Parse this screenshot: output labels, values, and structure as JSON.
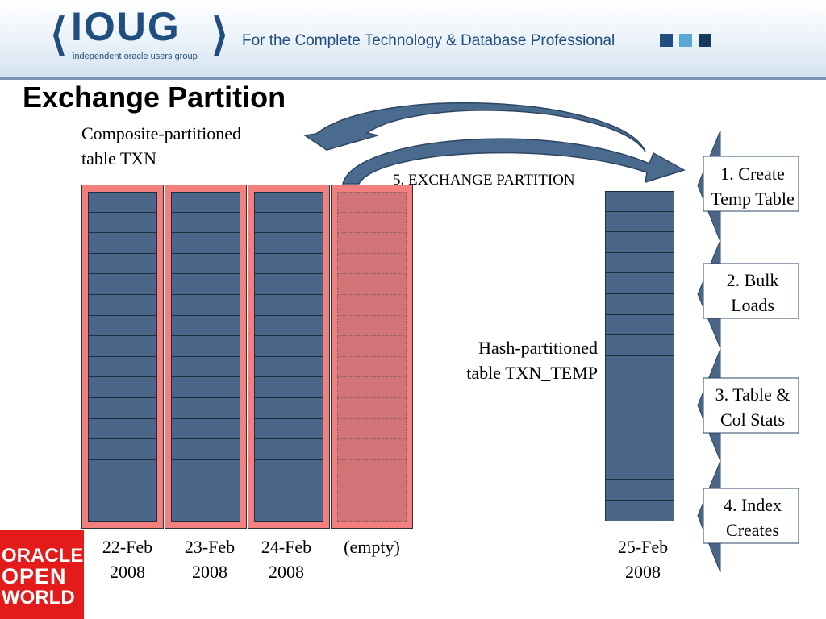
{
  "header": {
    "logo_text": "IOUG",
    "logo_sub": "independent oracle users group",
    "tagline": "For the Complete Technology & Database Professional"
  },
  "slide": {
    "title": "Exchange Partition",
    "composite_label_1": "Composite-partitioned",
    "composite_label_2": "table TXN",
    "exchange_label": "5. EXCHANGE PARTITION",
    "hash_label_1": "Hash-partitioned",
    "hash_label_2": "table TXN_TEMP",
    "partitions": [
      {
        "date": "22-Feb",
        "year": "2008"
      },
      {
        "date": "23-Feb",
        "year": "2008"
      },
      {
        "date": "24-Feb",
        "year": "2008"
      },
      {
        "date": "(empty)",
        "year": ""
      }
    ],
    "temp_partition": {
      "date": "25-Feb",
      "year": "2008"
    },
    "steps": [
      {
        "line1": "1. Create",
        "line2": "Temp Table"
      },
      {
        "line1": "2. Bulk",
        "line2": "Loads"
      },
      {
        "line1": "3. Table &",
        "line2": "Col Stats"
      },
      {
        "line1": "4. Index",
        "line2": "Creates"
      }
    ]
  },
  "footer": {
    "logo_line1": "ORACLE",
    "logo_line2": "OPEN",
    "logo_line3": "WORLD"
  },
  "colors": {
    "accent_blue": "#214e80",
    "cell_blue": "#4a6688",
    "partition_pink": "#f47f7f",
    "oow_red": "#e31b1b"
  }
}
